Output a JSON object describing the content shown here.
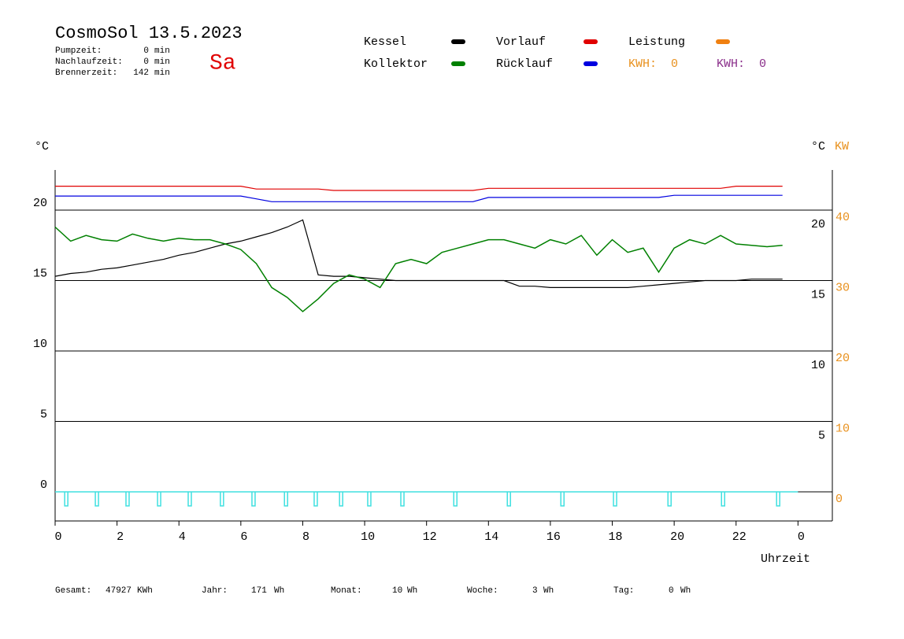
{
  "header": {
    "title": "CosmoSol 13.5.2023",
    "day": "Sa",
    "stats": [
      {
        "label": "Pumpzeit:",
        "value": 0,
        "unit": "min"
      },
      {
        "label": "Nachlaufzeit:",
        "value": 0,
        "unit": "min"
      },
      {
        "label": "Brennerzeit:",
        "value": 142,
        "unit": "min"
      }
    ],
    "kwh": [
      {
        "label": "KWH:",
        "value": 0,
        "color": "#e8901c"
      },
      {
        "label": "KWH:",
        "value": 0,
        "color": "#8a2e8a"
      }
    ]
  },
  "chart_data": {
    "type": "line",
    "y_unit": "°C",
    "y2_unit": "°C",
    "y3_unit": "KW",
    "x_label": "Uhrzeit",
    "x": [
      0,
      0.5,
      1,
      1.5,
      2,
      2.5,
      3,
      3.5,
      4,
      4.5,
      5,
      5.5,
      6,
      6.5,
      7,
      7.5,
      8,
      8.5,
      9,
      9.5,
      10,
      10.5,
      11,
      11.5,
      12,
      12.5,
      13,
      13.5,
      14,
      14.5,
      15,
      15.5,
      16,
      16.5,
      17,
      17.5,
      18,
      18.5,
      19,
      19.5,
      20,
      20.5,
      21,
      21.5,
      22,
      22.5,
      23,
      23.5
    ],
    "xlim": [
      0,
      25.11
    ],
    "xticks": [
      0,
      2,
      4,
      6,
      8,
      10,
      12,
      14,
      16,
      18,
      20,
      22,
      {
        "value": 24,
        "label": "0"
      }
    ],
    "ylim": [
      -2.07,
      22.85
    ],
    "yticks": [
      0,
      5,
      10,
      15,
      20
    ],
    "y2lim": [
      -2.07,
      22.85
    ],
    "y2ticks": [
      5,
      10,
      15,
      20
    ],
    "y3lim": [
      -4.14,
      45.7
    ],
    "y3ticks": [
      0,
      10,
      20,
      30,
      40
    ],
    "grid": true,
    "series": [
      {
        "name": "Kessel",
        "color": "#000000",
        "values": [
          15.3,
          15.5,
          15.6,
          15.8,
          15.9,
          16.1,
          16.3,
          16.5,
          16.8,
          17.0,
          17.3,
          17.6,
          17.8,
          18.1,
          18.4,
          18.8,
          19.3,
          15.4,
          15.3,
          15.3,
          15.2,
          15.1,
          15.0,
          15.0,
          15.0,
          15.0,
          15.0,
          15.0,
          15.0,
          15.0,
          14.6,
          14.6,
          14.5,
          14.5,
          14.5,
          14.5,
          14.5,
          14.5,
          14.6,
          14.7,
          14.8,
          14.9,
          15.0,
          15.0,
          15.0,
          15.1,
          15.1,
          15.1
        ]
      },
      {
        "name": "Kollektor",
        "color": "#008000",
        "values": [
          18.8,
          17.8,
          18.2,
          17.9,
          17.8,
          18.3,
          18.0,
          17.8,
          18.0,
          17.9,
          17.9,
          17.6,
          17.2,
          16.2,
          14.5,
          13.8,
          12.8,
          13.7,
          14.8,
          15.4,
          15.1,
          14.5,
          16.2,
          16.5,
          16.2,
          17.0,
          17.3,
          17.6,
          17.9,
          17.9,
          17.6,
          17.3,
          17.9,
          17.6,
          18.2,
          16.8,
          17.9,
          17.0,
          17.3,
          15.6,
          17.3,
          17.9,
          17.6,
          18.2,
          17.6,
          17.5,
          17.4,
          17.5
        ]
      },
      {
        "name": "Vorlauf",
        "color": "#e00000",
        "values": [
          21.7,
          21.7,
          21.7,
          21.7,
          21.7,
          21.7,
          21.7,
          21.7,
          21.7,
          21.7,
          21.7,
          21.7,
          21.7,
          21.5,
          21.5,
          21.5,
          21.5,
          21.5,
          21.4,
          21.4,
          21.4,
          21.4,
          21.4,
          21.4,
          21.4,
          21.4,
          21.4,
          21.4,
          21.55,
          21.55,
          21.55,
          21.55,
          21.55,
          21.55,
          21.55,
          21.55,
          21.55,
          21.55,
          21.55,
          21.55,
          21.55,
          21.55,
          21.55,
          21.55,
          21.7,
          21.7,
          21.7,
          21.7
        ]
      },
      {
        "name": "Rücklauf",
        "color": "#0000e0",
        "values": [
          21.0,
          21.0,
          21.0,
          21.0,
          21.0,
          21.0,
          21.0,
          21.0,
          21.0,
          21.0,
          21.0,
          21.0,
          21.0,
          20.8,
          20.6,
          20.6,
          20.6,
          20.6,
          20.6,
          20.6,
          20.6,
          20.6,
          20.6,
          20.6,
          20.6,
          20.6,
          20.6,
          20.6,
          20.9,
          20.9,
          20.9,
          20.9,
          20.9,
          20.9,
          20.9,
          20.9,
          20.9,
          20.9,
          20.9,
          20.9,
          21.05,
          21.05,
          21.05,
          21.05,
          21.05,
          21.05,
          21.05,
          21.05
        ]
      },
      {
        "name": "Leistung",
        "color": "#f08010",
        "values": [
          null,
          null,
          null,
          null,
          null,
          null,
          null,
          null,
          null,
          null,
          null,
          null,
          null,
          null,
          null,
          null,
          null,
          null,
          null,
          null,
          null,
          null,
          null,
          null,
          null,
          null,
          null,
          null,
          null,
          null,
          null,
          null,
          null,
          null,
          null,
          null,
          null,
          null,
          null,
          null,
          null,
          null,
          null,
          null,
          null,
          null,
          null,
          null
        ]
      }
    ],
    "pulses": {
      "color": "#40e0e0",
      "x": [
        0.36,
        1.35,
        2.34,
        3.36,
        4.35,
        5.39,
        6.41,
        7.46,
        8.42,
        9.24,
        10.15,
        11.22,
        12.93,
        14.66,
        16.39,
        18.09,
        19.85,
        21.58,
        23.36
      ],
      "values": [
        -1,
        -1,
        -1,
        -1,
        -1,
        -1,
        -1,
        -1,
        -1,
        -1,
        -1,
        -1,
        -1,
        -1,
        -1,
        -1,
        -1,
        -1,
        -1
      ]
    }
  },
  "footer": [
    {
      "label": "Gesamt:",
      "value": 47927,
      "unit": "KWh"
    },
    {
      "label": "Jahr:",
      "value": 171,
      "unit": "Wh"
    },
    {
      "label": "Monat:",
      "value": 10,
      "unit": "Wh"
    },
    {
      "label": "Woche:",
      "value": 3,
      "unit": "Wh"
    },
    {
      "label": "Tag:",
      "value": 0,
      "unit": "Wh"
    }
  ]
}
